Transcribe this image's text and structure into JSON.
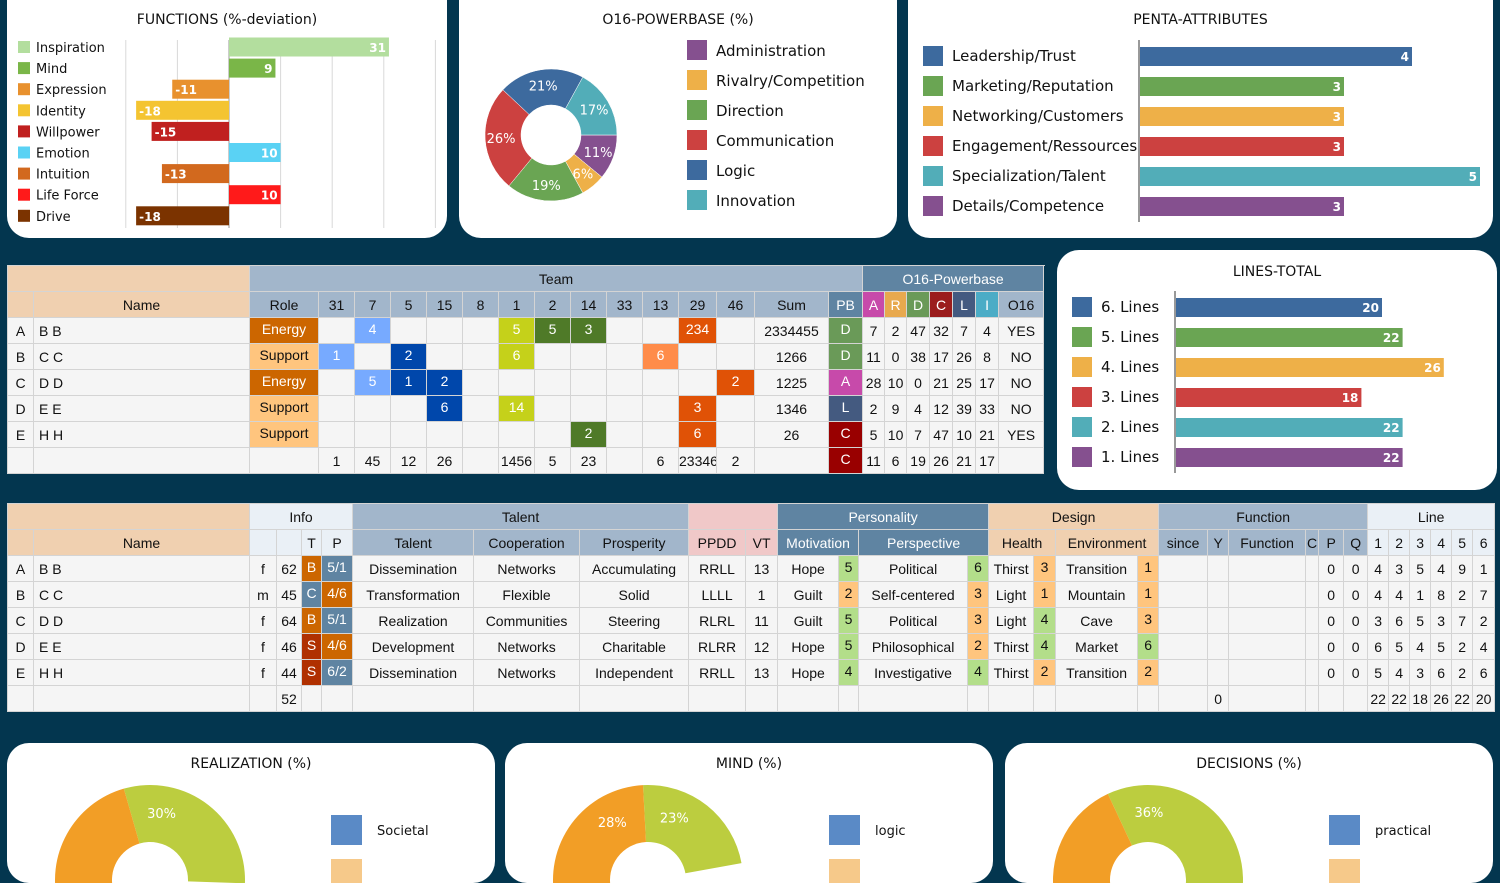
{
  "functions_chart": {
    "title": "FUNCTIONS (%-deviation)",
    "type": "bar",
    "xlim": [
      -20,
      40
    ],
    "items": [
      {
        "label": "Inspiration",
        "value": 31,
        "color": "#b3de9e"
      },
      {
        "label": "Mind",
        "value": 9,
        "color": "#7ab648"
      },
      {
        "label": "Expression",
        "value": -11,
        "color": "#e8912e"
      },
      {
        "label": "Identity",
        "value": -18,
        "color": "#f4c431"
      },
      {
        "label": "Willpower",
        "value": -15,
        "color": "#c0201f"
      },
      {
        "label": "Emotion",
        "value": 10,
        "color": "#5ad2f4"
      },
      {
        "label": "Intuition",
        "value": -13,
        "color": "#d2691e"
      },
      {
        "label": "Life Force",
        "value": 10,
        "color": "#ff1a1a"
      },
      {
        "label": "Drive",
        "value": -18,
        "color": "#7b3300"
      }
    ]
  },
  "powerbase_chart": {
    "title": "O16-POWERBASE (%)",
    "type": "pie",
    "items": [
      {
        "label": "Administration",
        "value": 11,
        "text": "11%",
        "color": "#85508f"
      },
      {
        "label": "Rivalry/Competition",
        "value": 6,
        "text": "6%",
        "color": "#eeb048"
      },
      {
        "label": "Direction",
        "value": 19,
        "text": "19%",
        "color": "#6aa553"
      },
      {
        "label": "Communication",
        "value": 26,
        "text": "26%",
        "color": "#cc4140"
      },
      {
        "label": "Logic",
        "value": 21,
        "text": "21%",
        "color": "#3d6a9e"
      },
      {
        "label": "Innovation",
        "value": 17,
        "text": "17%",
        "color": "#52adb8"
      }
    ]
  },
  "penta_chart": {
    "title": "PENTA-ATTRIBUTES",
    "type": "bar",
    "xlim": [
      0,
      5
    ],
    "items": [
      {
        "label": "Leadership/Trust",
        "value": 4,
        "color": "#3d6a9e"
      },
      {
        "label": "Marketing/Reputation",
        "value": 3,
        "color": "#6aa553"
      },
      {
        "label": "Networking/Customers",
        "value": 3,
        "color": "#eeb048"
      },
      {
        "label": "Engagement/Ressources",
        "value": 3,
        "color": "#cc4140"
      },
      {
        "label": "Specialization/Talent",
        "value": 5,
        "color": "#52adb8"
      },
      {
        "label": "Details/Competence",
        "value": 3,
        "color": "#85508f"
      }
    ]
  },
  "lines_chart": {
    "title": "LINES-TOTAL",
    "type": "bar",
    "xlim": [
      0,
      28
    ],
    "items": [
      {
        "label": "6. Lines",
        "value": 20,
        "color": "#3d6a9e"
      },
      {
        "label": "5. Lines",
        "value": 22,
        "color": "#6aa553"
      },
      {
        "label": "4. Lines",
        "value": 26,
        "color": "#eeb048"
      },
      {
        "label": "3. Lines",
        "value": 18,
        "color": "#cc4140"
      },
      {
        "label": "2. Lines",
        "value": 22,
        "color": "#52adb8"
      },
      {
        "label": "1. Lines",
        "value": 22,
        "color": "#85508f"
      }
    ]
  },
  "chart_data": [
    {
      "type": "bar",
      "title": "FUNCTIONS (%-deviation)",
      "categories": [
        "Inspiration",
        "Mind",
        "Expression",
        "Identity",
        "Willpower",
        "Emotion",
        "Intuition",
        "Life Force",
        "Drive"
      ],
      "values": [
        31,
        9,
        -11,
        -18,
        -15,
        10,
        -13,
        10,
        -18
      ],
      "xlim": [
        -20,
        40
      ]
    },
    {
      "type": "pie",
      "title": "O16-POWERBASE (%)",
      "categories": [
        "Administration",
        "Rivalry/Competition",
        "Direction",
        "Communication",
        "Logic",
        "Innovation"
      ],
      "values": [
        11,
        6,
        19,
        26,
        21,
        17
      ]
    },
    {
      "type": "bar",
      "title": "PENTA-ATTRIBUTES",
      "categories": [
        "Leadership/Trust",
        "Marketing/Reputation",
        "Networking/Customers",
        "Engagement/Ressources",
        "Specialization/Talent",
        "Details/Competence"
      ],
      "values": [
        4,
        3,
        3,
        3,
        5,
        3
      ]
    },
    {
      "type": "bar",
      "title": "LINES-TOTAL",
      "categories": [
        "6. Lines",
        "5. Lines",
        "4. Lines",
        "3. Lines",
        "2. Lines",
        "1. Lines"
      ],
      "values": [
        20,
        22,
        26,
        18,
        22,
        22
      ]
    },
    {
      "type": "pie",
      "title": "REALIZATION (%)",
      "visible_labels": [
        "30%"
      ],
      "legend": [
        "Societal"
      ]
    },
    {
      "type": "pie",
      "title": "MIND (%)",
      "visible_labels": [
        "28%",
        "23%"
      ],
      "legend": [
        "logic"
      ]
    },
    {
      "type": "pie",
      "title": "DECISIONS (%)",
      "visible_labels": [
        "36%"
      ],
      "legend": [
        "practical"
      ]
    }
  ],
  "bottom_charts": [
    {
      "title": "REALIZATION (%)",
      "legend": "Societal",
      "slices": [
        {
          "value": 30,
          "text": "30%",
          "color": "#bccd3f"
        },
        {
          "value": 25,
          "text": "",
          "color": "#f29e26"
        }
      ]
    },
    {
      "title": "MIND (%)",
      "legend": "logic",
      "slices": [
        {
          "value": 23,
          "text": "23%",
          "color": "#bccd3f"
        },
        {
          "value": 28,
          "text": "28%",
          "color": "#f29e26"
        }
      ]
    },
    {
      "title": "DECISIONS (%)",
      "legend": "practical",
      "slices": [
        {
          "value": 36,
          "text": "36%",
          "color": "#bccd3f"
        },
        {
          "value": 20,
          "text": "",
          "color": "#f29e26"
        }
      ]
    }
  ],
  "team_table": {
    "group_team": "Team",
    "group_powerbase": "O16-Powerbase",
    "name_header": "Name",
    "role_header": "Role",
    "columns": [
      "31",
      "7",
      "5",
      "15",
      "8",
      "1",
      "2",
      "14",
      "33",
      "13",
      "29",
      "46"
    ],
    "column_colors": [
      "#77aaff",
      "#77aaff",
      "#0047ab",
      "#0047ab",
      "#cccccc",
      "#c5d11a",
      "#4f7a28",
      "#4f7a28",
      "#cccccc",
      "#ff8c4a",
      "#e05206",
      "#e05206"
    ],
    "sum_header": "Sum",
    "pb_headers": [
      {
        "label": "PB",
        "color": "#5f84a2"
      },
      {
        "label": "A",
        "color": "#c74aaa"
      },
      {
        "label": "R",
        "color": "#e8a94e"
      },
      {
        "label": "D",
        "color": "#6a9a58"
      },
      {
        "label": "C",
        "color": "#9b1c1c"
      },
      {
        "label": "L",
        "color": "#445a80"
      },
      {
        "label": "I",
        "color": "#4bacc6"
      },
      {
        "label": "O16",
        "color": "#a2b6cb"
      }
    ],
    "role_colors": {
      "Energy": "#cc6600",
      "Support": "#ffc57e"
    },
    "pb_colors": {
      "D": "#6a9a58",
      "A": "#c74aaa",
      "L": "#445a80",
      "C": "#990000"
    },
    "rows": [
      {
        "letter": "A",
        "name": "B B",
        "role": "Energy",
        "cells": [
          "",
          "4",
          "",
          "",
          "",
          "5",
          "5",
          "3",
          "",
          "",
          "234",
          ""
        ],
        "sum": "2334455",
        "pb": "D",
        "scores": [
          "7",
          "2",
          "47",
          "32",
          "7",
          "4"
        ],
        "o16": "YES"
      },
      {
        "letter": "B",
        "name": "C C",
        "role": "Support",
        "cells": [
          "1",
          "",
          "2",
          "",
          "",
          "6",
          "",
          "",
          "",
          "6",
          "",
          ""
        ],
        "sum": "1266",
        "pb": "D",
        "scores": [
          "11",
          "0",
          "38",
          "17",
          "26",
          "8"
        ],
        "o16": "NO"
      },
      {
        "letter": "C",
        "name": "D D",
        "role": "Energy",
        "cells": [
          "",
          "5",
          "1",
          "2",
          "",
          "",
          "",
          "",
          "",
          "",
          "",
          "2"
        ],
        "sum": "1225",
        "pb": "A",
        "scores": [
          "28",
          "10",
          "0",
          "21",
          "25",
          "17"
        ],
        "o16": "NO"
      },
      {
        "letter": "D",
        "name": "E E",
        "role": "Support",
        "cells": [
          "",
          "",
          "",
          "6",
          "",
          "14",
          "",
          "",
          "",
          "",
          "3",
          ""
        ],
        "sum": "1346",
        "pb": "L",
        "scores": [
          "2",
          "9",
          "4",
          "12",
          "39",
          "33"
        ],
        "o16": "NO"
      },
      {
        "letter": "E",
        "name": "H H",
        "role": "Support",
        "cells": [
          "",
          "",
          "",
          "",
          "",
          "",
          "",
          "2",
          "",
          "",
          "6",
          ""
        ],
        "sum": "26",
        "pb": "C",
        "scores": [
          "5",
          "10",
          "7",
          "47",
          "10",
          "21"
        ],
        "o16": "YES"
      }
    ],
    "totals": {
      "cells": [
        "1",
        "45",
        "12",
        "26",
        "",
        "1456",
        "5",
        "23",
        "",
        "6",
        "23346",
        "2"
      ],
      "pb": "C",
      "scores": [
        "11",
        "6",
        "19",
        "26",
        "21",
        "17"
      ]
    }
  },
  "profile_table": {
    "groups": {
      "info": "Info",
      "talent": "Talent",
      "personality": "Personality",
      "design": "Design",
      "function": "Function",
      "line": "Line"
    },
    "headers": {
      "name": "Name",
      "t": "T",
      "p": "P",
      "talent": "Talent",
      "cooperation": "Cooperation",
      "prosperity": "Prosperity",
      "ppdd": "PPDD",
      "vt": "VT",
      "motivation": "Motivation",
      "perspective": "Perspective",
      "health": "Health",
      "environment": "Environment",
      "since": "since",
      "y": "Y",
      "function": "Function",
      "c": "C",
      "fp": "P",
      "q": "Q",
      "lines": [
        "1",
        "2",
        "3",
        "4",
        "5",
        "6"
      ]
    },
    "type_colors": {
      "B": "#cc6600",
      "C": "#5f84a2",
      "S": "#b03000"
    },
    "profile_colors": {
      "5/1": "#5f84a2",
      "4/6": "#cc6600",
      "6/2": "#5f84a2"
    },
    "score_colors": {
      "high": "#b3de8a",
      "low": "#ffc57e"
    },
    "rows": [
      {
        "letter": "A",
        "name": "B B",
        "gender": "f",
        "age": "62",
        "t": "B",
        "p": "5/1",
        "talent": "Dissemination",
        "cooperation": "Networks",
        "prosperity": "Accumulating",
        "ppdd": "RRLL",
        "vt": "13",
        "motivation": "Hope",
        "motivation_score": "5",
        "perspective": "Political",
        "perspective_score": "6",
        "health": "Thirst",
        "health_score": "3",
        "environment": "Transition",
        "environment_score": "1",
        "since": "",
        "y": "",
        "function": "",
        "c": "",
        "fp": "0",
        "q": "0",
        "lines": [
          "4",
          "3",
          "5",
          "4",
          "9",
          "1"
        ]
      },
      {
        "letter": "B",
        "name": "C C",
        "gender": "m",
        "age": "45",
        "t": "C",
        "p": "4/6",
        "talent": "Transformation",
        "cooperation": "Flexible",
        "prosperity": "Solid",
        "ppdd": "LLLL",
        "vt": "1",
        "motivation": "Guilt",
        "motivation_score": "2",
        "perspective": "Self-centered",
        "perspective_score": "3",
        "health": "Light",
        "health_score": "1",
        "environment": "Mountain",
        "environment_score": "1",
        "since": "",
        "y": "",
        "function": "",
        "c": "",
        "fp": "0",
        "q": "0",
        "lines": [
          "4",
          "4",
          "1",
          "8",
          "2",
          "7"
        ]
      },
      {
        "letter": "C",
        "name": "D D",
        "gender": "f",
        "age": "64",
        "t": "B",
        "p": "5/1",
        "talent": "Realization",
        "cooperation": "Communities",
        "prosperity": "Steering",
        "ppdd": "RLRL",
        "vt": "11",
        "motivation": "Guilt",
        "motivation_score": "5",
        "perspective": "Political",
        "perspective_score": "3",
        "health": "Light",
        "health_score": "4",
        "environment": "Cave",
        "environment_score": "3",
        "since": "",
        "y": "",
        "function": "",
        "c": "",
        "fp": "0",
        "q": "0",
        "lines": [
          "3",
          "6",
          "5",
          "3",
          "7",
          "2"
        ]
      },
      {
        "letter": "D",
        "name": "E E",
        "gender": "f",
        "age": "46",
        "t": "S",
        "p": "4/6",
        "talent": "Development",
        "cooperation": "Networks",
        "prosperity": "Charitable",
        "ppdd": "RLRR",
        "vt": "12",
        "motivation": "Hope",
        "motivation_score": "5",
        "perspective": "Philosophical",
        "perspective_score": "2",
        "health": "Thirst",
        "health_score": "4",
        "environment": "Market",
        "environment_score": "6",
        "since": "",
        "y": "",
        "function": "",
        "c": "",
        "fp": "0",
        "q": "0",
        "lines": [
          "6",
          "5",
          "4",
          "5",
          "2",
          "4"
        ]
      },
      {
        "letter": "E",
        "name": "H H",
        "gender": "f",
        "age": "44",
        "t": "S",
        "p": "6/2",
        "talent": "Dissemination",
        "cooperation": "Networks",
        "prosperity": "Independent",
        "ppdd": "RRLL",
        "vt": "13",
        "motivation": "Hope",
        "motivation_score": "4",
        "perspective": "Investigative",
        "perspective_score": "4",
        "health": "Thirst",
        "health_score": "2",
        "environment": "Transition",
        "environment_score": "2",
        "since": "",
        "y": "",
        "function": "",
        "c": "",
        "fp": "0",
        "q": "0",
        "lines": [
          "5",
          "4",
          "3",
          "6",
          "2",
          "6"
        ]
      }
    ],
    "totals": {
      "age": "52",
      "y": "0",
      "lines": [
        "22",
        "22",
        "18",
        "26",
        "22",
        "20"
      ]
    }
  }
}
